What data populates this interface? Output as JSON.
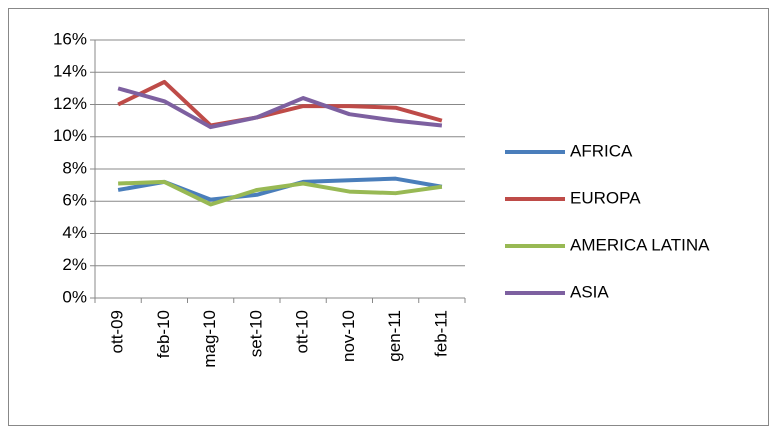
{
  "chart_data": {
    "type": "line",
    "categories": [
      "ott-09",
      "feb-10",
      "mag-10",
      "set-10",
      "ott-10",
      "nov-10",
      "gen-11",
      "feb-11"
    ],
    "series": [
      {
        "name": "AFRICA",
        "color": "#4a7ebb",
        "values": [
          6.7,
          7.2,
          6.1,
          6.4,
          7.2,
          7.3,
          7.4,
          6.9
        ]
      },
      {
        "name": "EUROPA",
        "color": "#be4b48",
        "values": [
          12.0,
          13.4,
          10.7,
          11.2,
          11.9,
          11.9,
          11.8,
          11.0
        ]
      },
      {
        "name": "AMERICA LATINA",
        "color": "#98b954",
        "values": [
          7.1,
          7.2,
          5.8,
          6.7,
          7.1,
          6.6,
          6.5,
          6.9
        ]
      },
      {
        "name": "ASIA",
        "color": "#7d60a0",
        "values": [
          13.0,
          12.2,
          10.6,
          11.2,
          12.4,
          11.4,
          11.0,
          10.7
        ]
      }
    ],
    "ylim": [
      0,
      16
    ],
    "yticks": [
      {
        "value": 0,
        "label": "0%"
      },
      {
        "value": 2,
        "label": "2%"
      },
      {
        "value": 4,
        "label": "4%"
      },
      {
        "value": 6,
        "label": "6%"
      },
      {
        "value": 8,
        "label": "8%"
      },
      {
        "value": 10,
        "label": "10%"
      },
      {
        "value": 12,
        "label": "12%"
      },
      {
        "value": 14,
        "label": "14%"
      },
      {
        "value": 16,
        "label": "16%"
      }
    ],
    "grid": true,
    "legend": "right"
  }
}
